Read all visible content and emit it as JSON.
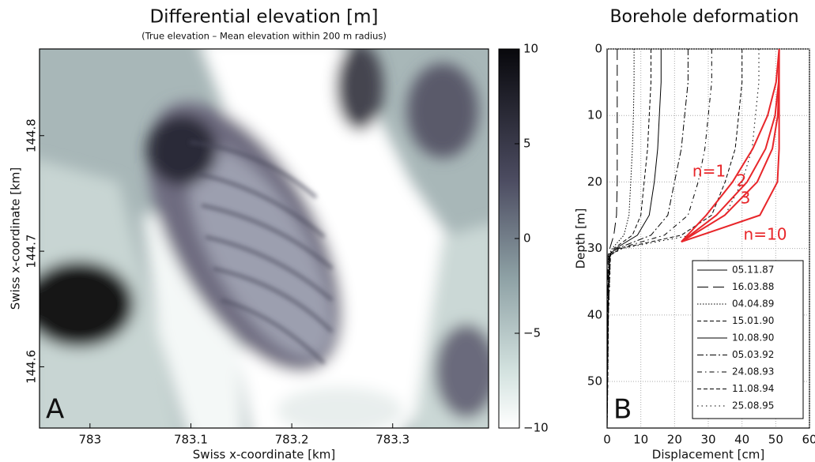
{
  "chart_data": [
    {
      "type": "image-map",
      "title": "Differential elevation [m]",
      "subtitle": "(True elevation – Mean elevation within 200 m radius)",
      "xlabel": "Swiss x-coordinate [km]",
      "ylabel": "Swiss x-coordinate [km]",
      "panel_label": "A",
      "xlim": [
        782.95,
        783.395
      ],
      "xticks": [
        783,
        783.1,
        783.2,
        783.3
      ],
      "ylim": [
        144.547,
        144.875
      ],
      "yticks": [
        144.6,
        144.7,
        144.8
      ],
      "clim": [
        -10,
        10
      ],
      "cticks": [
        {
          "value": -10,
          "label": "−10"
        },
        {
          "value": -5,
          "label": "−5"
        },
        0,
        5,
        10
      ]
    },
    {
      "type": "depth-profile",
      "title": "Borehole deformation",
      "xlabel": "Displacement [cm]",
      "ylabel": "Depth [m]",
      "panel_label": "B",
      "xlim": [
        0,
        60
      ],
      "xticks": [
        0,
        10,
        20,
        30,
        40,
        50,
        60
      ],
      "ylim": [
        0,
        57
      ],
      "yticks": [
        0,
        10,
        20,
        30,
        40,
        50
      ],
      "y_inverted": true,
      "grid": true,
      "depth": [
        0,
        5,
        10,
        15,
        20,
        25,
        28,
        30,
        31,
        35,
        40,
        50,
        57
      ],
      "series": [
        {
          "name": "05.11.87",
          "linestyle": "solid",
          "color": "#000000",
          "values": [
            0,
            0,
            0,
            0,
            0,
            0,
            0,
            0,
            0,
            0,
            0,
            0,
            0
          ]
        },
        {
          "name": "16.03.88",
          "linestyle": "longdash",
          "color": "#000000",
          "values": [
            3,
            3,
            3,
            3,
            3,
            2.8,
            2,
            0.8,
            0.3,
            0.2,
            0.1,
            0,
            0
          ]
        },
        {
          "name": "04.04.89",
          "linestyle": "dotted",
          "color": "#000000",
          "values": [
            8,
            8,
            7.8,
            7.5,
            7,
            6.5,
            5,
            1.5,
            0.5,
            0.3,
            0.2,
            0.1,
            0
          ]
        },
        {
          "name": "15.01.90",
          "linestyle": "dashed",
          "color": "#000000",
          "values": [
            13,
            13,
            12.5,
            12,
            11,
            10,
            7.5,
            2,
            0.6,
            0.4,
            0.2,
            0.1,
            0
          ]
        },
        {
          "name": "10.08.90",
          "linestyle": "solid",
          "color": "#000000",
          "values": [
            16,
            16,
            15.5,
            15,
            14,
            12.5,
            9,
            2.5,
            0.7,
            0.5,
            0.3,
            0.1,
            0
          ]
        },
        {
          "name": "05.03.92",
          "linestyle": "dashdot",
          "color": "#000000",
          "values": [
            24,
            24,
            23,
            22,
            20,
            18,
            13,
            3,
            0.8,
            0.5,
            0.3,
            0.1,
            0
          ]
        },
        {
          "name": "24.08.93",
          "linestyle": "dashdotsparse",
          "color": "#000000",
          "values": [
            31,
            31,
            30,
            29,
            27,
            24,
            17,
            3.5,
            0.9,
            0.6,
            0.3,
            0.1,
            0
          ]
        },
        {
          "name": "11.08.94",
          "linestyle": "dashed",
          "color": "#000000",
          "values": [
            40,
            40,
            39,
            38,
            35,
            31,
            22,
            4,
            1,
            0.7,
            0.4,
            0.2,
            0
          ]
        },
        {
          "name": "25.08.95",
          "linestyle": "sparsedots",
          "color": "#000000",
          "values": [
            45,
            45,
            44,
            43,
            40,
            35,
            25,
            4.5,
            1,
            0.8,
            0.4,
            0.2,
            0
          ]
        }
      ],
      "model_depth": [
        0,
        5,
        10,
        15,
        20,
        25,
        29
      ],
      "models": [
        {
          "name": "n=1",
          "color": "#e8262a",
          "values": [
            51,
            50.1,
            47.6,
            43.2,
            37.2,
            29.4,
            22
          ]
        },
        {
          "name": "2",
          "color": "#e8262a",
          "values": [
            51,
            50.85,
            49.8,
            47,
            41.5,
            32.4,
            22
          ]
        },
        {
          "name": "3",
          "color": "#e8262a",
          "values": [
            51,
            50.97,
            50.6,
            49,
            44.5,
            34.9,
            22
          ]
        },
        {
          "name": "n=10",
          "color": "#e8262a",
          "values": [
            51,
            51,
            51,
            51,
            50.5,
            45.3,
            22
          ]
        }
      ]
    }
  ]
}
